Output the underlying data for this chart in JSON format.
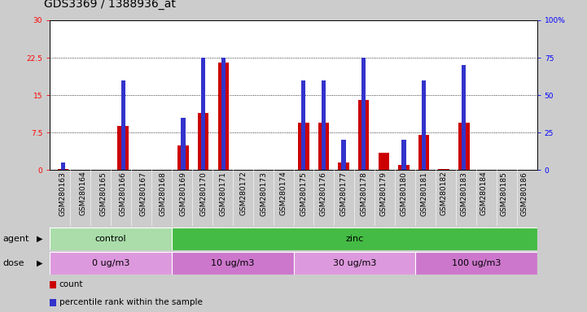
{
  "title": "GDS3369 / 1388936_at",
  "samples": [
    "GSM280163",
    "GSM280164",
    "GSM280165",
    "GSM280166",
    "GSM280167",
    "GSM280168",
    "GSM280169",
    "GSM280170",
    "GSM280171",
    "GSM280172",
    "GSM280173",
    "GSM280174",
    "GSM280175",
    "GSM280176",
    "GSM280177",
    "GSM280178",
    "GSM280179",
    "GSM280180",
    "GSM280181",
    "GSM280182",
    "GSM280183",
    "GSM280184",
    "GSM280185",
    "GSM280186"
  ],
  "count_values": [
    0.2,
    0.0,
    0.0,
    8.8,
    0.0,
    0.0,
    5.0,
    11.5,
    21.5,
    0.0,
    0.0,
    0.0,
    9.5,
    9.5,
    1.5,
    14.0,
    3.5,
    1.0,
    7.0,
    0.2,
    9.5,
    0.0,
    0.0,
    0.0
  ],
  "percentile_values": [
    1.5,
    0.0,
    0.0,
    18.0,
    0.0,
    0.0,
    10.5,
    22.5,
    22.5,
    0.0,
    0.0,
    0.0,
    18.0,
    18.0,
    6.0,
    22.5,
    0.0,
    6.0,
    18.0,
    0.0,
    21.0,
    0.0,
    0.0,
    0.0
  ],
  "ylim_left": [
    0,
    30
  ],
  "ylim_right": [
    0,
    100
  ],
  "yticks_left": [
    0,
    7.5,
    15,
    22.5,
    30
  ],
  "yticks_right": [
    0,
    25,
    50,
    75,
    100
  ],
  "bar_color_red": "#cc0000",
  "bar_color_blue": "#3333cc",
  "bar_width": 0.55,
  "agent_groups": [
    {
      "label": "control",
      "start": 0,
      "end": 6,
      "color": "#aaddaa"
    },
    {
      "label": "zinc",
      "start": 6,
      "end": 24,
      "color": "#44bb44"
    }
  ],
  "dose_groups": [
    {
      "label": "0 ug/m3",
      "start": 0,
      "end": 6,
      "color": "#dd99dd"
    },
    {
      "label": "10 ug/m3",
      "start": 6,
      "end": 12,
      "color": "#cc77cc"
    },
    {
      "label": "30 ug/m3",
      "start": 12,
      "end": 18,
      "color": "#dd99dd"
    },
    {
      "label": "100 ug/m3",
      "start": 18,
      "end": 24,
      "color": "#cc77cc"
    }
  ],
  "legend_items": [
    {
      "label": "count",
      "color": "#cc0000"
    },
    {
      "label": "percentile rank within the sample",
      "color": "#3333cc"
    }
  ],
  "bg_color": "#cccccc",
  "plot_bg": "#ffffff",
  "title_fontsize": 10,
  "tick_fontsize": 6.5,
  "label_fontsize": 8
}
